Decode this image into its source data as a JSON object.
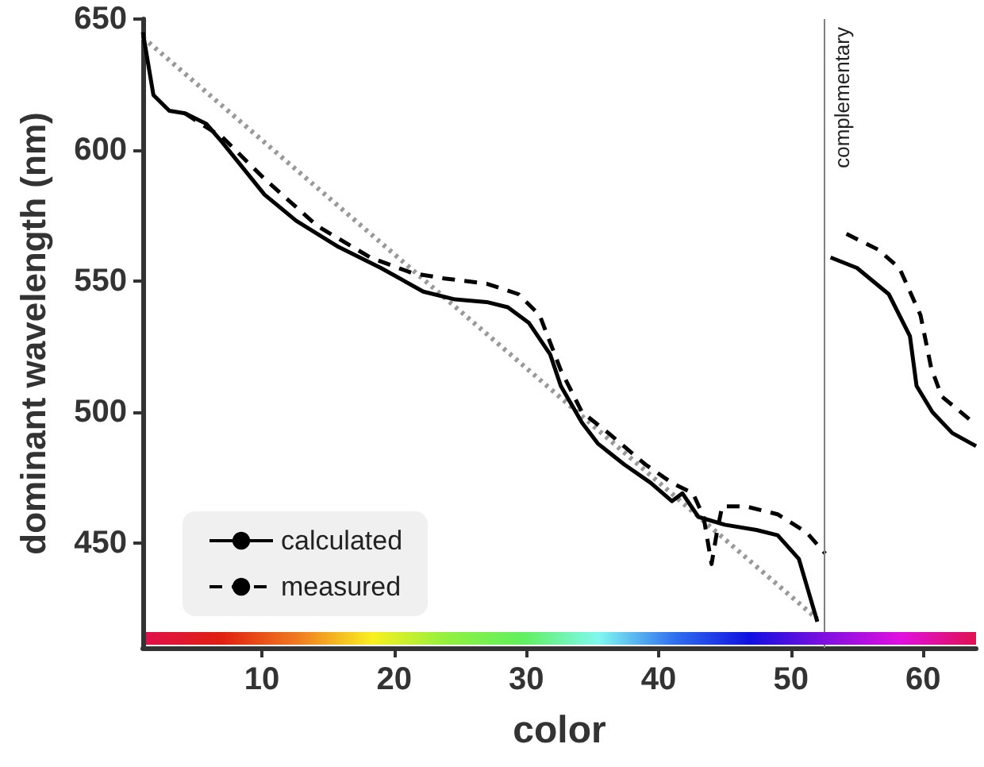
{
  "chart_data": {
    "type": "line",
    "xlabel": "color",
    "ylabel": "dominant wavelength (nm)",
    "xlim": [
      1,
      64
    ],
    "ylim": [
      410,
      650
    ],
    "xticks": [
      10,
      20,
      30,
      40,
      50,
      60
    ],
    "yticks": [
      450,
      500,
      550,
      600,
      650
    ],
    "grid": false,
    "legend": "bottom left",
    "marker": "none",
    "ref_lines": [
      {
        "axis": "x",
        "value": 52.5,
        "label": "complementary",
        "color": "#808080"
      }
    ],
    "series": [
      {
        "name": "calculated",
        "color": "#000000",
        "line_style": "solid",
        "x": [
          1,
          1.8,
          3,
          4.2,
          5.8,
          7,
          8.6,
          10.2,
          12.6,
          15.8,
          19,
          22.2,
          24.6,
          27,
          28.6,
          30.2,
          31.8,
          32.6,
          34.2,
          35.4,
          37.4,
          39.4,
          41,
          41.8,
          43,
          45,
          47.4,
          49,
          50.6,
          52,
          52.5,
          53,
          55,
          57.4,
          59,
          59.5,
          60.7,
          62.2,
          64
        ],
        "values": [
          645,
          621,
          615,
          614,
          610,
          603,
          593,
          583,
          573,
          563,
          555,
          546,
          543,
          542,
          540,
          534,
          522,
          510,
          496,
          488,
          480,
          473,
          466,
          469,
          460,
          457,
          455,
          453,
          444,
          420,
          null,
          559,
          555,
          545,
          529,
          510,
          500,
          492,
          487
        ]
      },
      {
        "name": "measured",
        "color": "#000000",
        "line_style": "dashed",
        "x": [
          4.2,
          5.4,
          7,
          10.2,
          14.2,
          18.2,
          21.4,
          23.8,
          27,
          29.4,
          31,
          32.6,
          34.2,
          36.2,
          39,
          41,
          42.6,
          43.4,
          44,
          44.4,
          44.8,
          46.6,
          49,
          51.2,
          52.6,
          53.5,
          54.2,
          56.6,
          58.2,
          59.8,
          60.6,
          61.4,
          63.8
        ],
        "values": [
          614,
          610,
          605,
          589,
          571,
          559,
          553,
          551,
          549,
          545,
          537,
          516,
          500,
          492,
          480,
          473,
          469,
          460,
          442,
          454,
          464,
          464,
          461,
          454,
          446,
          null,
          568,
          562,
          555,
          537,
          517,
          506,
          496
        ]
      },
      {
        "color": "#999999",
        "line_style": "dotted",
        "x": [
          1,
          52
        ],
        "values": [
          643,
          421
        ]
      }
    ]
  }
}
